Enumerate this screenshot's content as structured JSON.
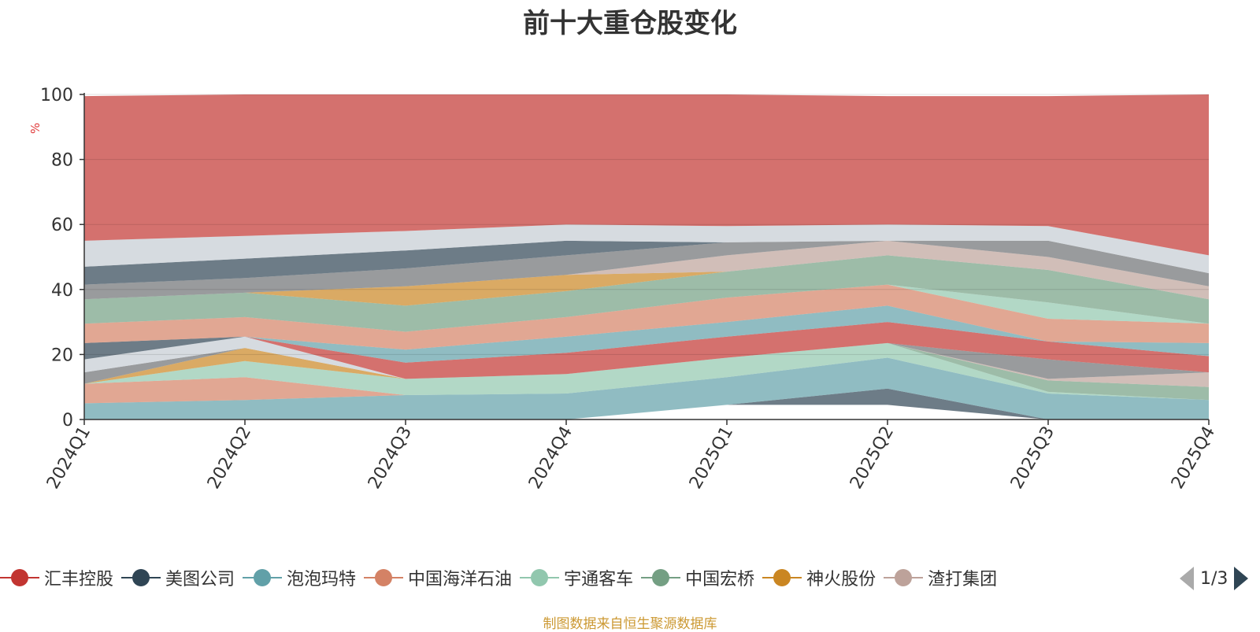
{
  "title": "前十大重仓股变化",
  "source": "制图数据来自恒生聚源数据库",
  "pager": {
    "text": "1/3"
  },
  "legend_items": [
    {
      "name": "汇丰控股",
      "color": "#c23531"
    },
    {
      "name": "美图公司",
      "color": "#2f4554"
    },
    {
      "name": "泡泡玛特",
      "color": "#61a0a8"
    },
    {
      "name": "中国海洋石油",
      "color": "#d48265"
    },
    {
      "name": "宇通客车",
      "color": "#91c7ae"
    },
    {
      "name": "中国宏桥",
      "color": "#749f83"
    },
    {
      "name": "神火股份",
      "color": "#ca8622"
    },
    {
      "name": "渣打集团",
      "color": "#bda29a"
    }
  ],
  "chart_data": {
    "type": "area",
    "stacked": true,
    "categories": [
      "2024Q1",
      "2024Q2",
      "2024Q3",
      "2024Q4",
      "2025Q1",
      "2025Q2",
      "2025Q3",
      "2025Q4"
    ],
    "ylabel": "%",
    "ylim": [
      0,
      100
    ],
    "yticks": [
      0,
      20,
      40,
      60,
      80,
      100
    ],
    "grid": true,
    "legend_position": "bottom",
    "bands": [
      {
        "color": "#c23531",
        "lower": [
          0,
          0,
          0,
          0,
          4.5,
          4.5,
          0,
          0
        ],
        "upper": [
          0,
          0,
          0,
          0,
          4.5,
          4.5,
          0,
          0
        ]
      },
      {
        "color": "#2f4554",
        "lower": [
          0,
          0,
          0,
          0,
          4.5,
          4.5,
          0,
          0
        ],
        "upper": [
          0,
          0,
          0,
          0,
          4.5,
          9.5,
          0,
          0
        ]
      },
      {
        "color": "#61a0a8",
        "lower": [
          0,
          0,
          0,
          0,
          4.5,
          9.5,
          0,
          0
        ],
        "upper": [
          5,
          6,
          7.5,
          8,
          13,
          19,
          8,
          6
        ]
      },
      {
        "color": "#d48265",
        "lower": [
          5,
          6,
          7.5,
          8,
          13,
          19,
          8,
          6
        ],
        "upper": [
          11,
          13,
          7.5,
          8,
          13,
          19,
          8,
          6
        ]
      },
      {
        "color": "#91c7ae",
        "lower": [
          11,
          13,
          7.5,
          8,
          13,
          19,
          8,
          6
        ],
        "upper": [
          11,
          18,
          12.5,
          14,
          19,
          23.5,
          8.5,
          6
        ]
      },
      {
        "color": "#749f83",
        "lower": [
          11,
          18,
          12.5,
          14,
          19,
          23.5,
          8.5,
          6
        ],
        "upper": [
          11,
          18,
          12.5,
          14,
          19,
          23.5,
          12,
          10
        ]
      },
      {
        "color": "#ca8622",
        "lower": [
          11,
          18,
          12.5,
          14,
          19,
          23.5,
          12,
          10
        ],
        "upper": [
          11,
          22,
          12.5,
          14,
          19,
          23.5,
          12,
          10
        ]
      },
      {
        "color": "#bda29a",
        "lower": [
          11,
          22,
          12.5,
          14,
          19,
          23.5,
          12,
          10
        ],
        "upper": [
          11,
          22,
          12.5,
          14,
          19,
          23.5,
          12.5,
          14.5
        ]
      },
      {
        "color": "#6e7074",
        "lower": [
          11,
          22,
          12.5,
          14,
          19,
          23.5,
          12.5,
          14.5
        ],
        "upper": [
          14.5,
          22,
          12.5,
          14,
          19,
          23.5,
          18.5,
          14.5
        ]
      },
      {
        "color": "#c4ccd3",
        "lower": [
          14.5,
          22,
          12.5,
          14,
          19,
          23.5,
          18.5,
          14.5
        ],
        "upper": [
          18.5,
          25.5,
          12.5,
          14,
          19,
          23.5,
          18.5,
          14.5
        ]
      },
      {
        "color": "#c23531",
        "lower": [
          18.5,
          25.5,
          12.5,
          14,
          19,
          23.5,
          18.5,
          14.5
        ],
        "upper": [
          18.5,
          25.5,
          17.5,
          20.5,
          25.5,
          30,
          24,
          19.5
        ]
      },
      {
        "color": "#2f4554",
        "lower": [
          18.5,
          25.5,
          17.5,
          20.5,
          25.5,
          30,
          24,
          19.5
        ],
        "upper": [
          23.5,
          25.5,
          17.5,
          20.5,
          25.5,
          30,
          24,
          19.5
        ]
      },
      {
        "color": "#61a0a8",
        "lower": [
          23.5,
          25.5,
          17.5,
          20.5,
          25.5,
          30,
          24,
          19.5
        ],
        "upper": [
          23.5,
          25.5,
          21.5,
          25.5,
          30,
          35,
          24,
          23.5
        ]
      },
      {
        "color": "#d48265",
        "lower": [
          23.5,
          25.5,
          21.5,
          25.5,
          30,
          35,
          24,
          23.5
        ],
        "upper": [
          29.5,
          31.5,
          27,
          31.5,
          37.5,
          41.5,
          31,
          29.5
        ]
      },
      {
        "color": "#91c7ae",
        "lower": [
          29.5,
          31.5,
          27,
          31.5,
          37.5,
          41.5,
          31,
          29.5
        ],
        "upper": [
          29.5,
          31.5,
          27,
          31.5,
          37.5,
          41.5,
          36,
          29.5
        ]
      },
      {
        "color": "#749f83",
        "lower": [
          29.5,
          31.5,
          27,
          31.5,
          37.5,
          41.5,
          36,
          29.5
        ],
        "upper": [
          37,
          39,
          35,
          39.5,
          45.5,
          50.5,
          46,
          37
        ]
      },
      {
        "color": "#ca8622",
        "lower": [
          37,
          39,
          35,
          39.5,
          45.5,
          50.5,
          46,
          37
        ],
        "upper": [
          37,
          39,
          41,
          44.5,
          45.5,
          50.5,
          46,
          37
        ]
      },
      {
        "color": "#bda29a",
        "lower": [
          37,
          39,
          41,
          44.5,
          45.5,
          50.5,
          46,
          37
        ],
        "upper": [
          37,
          39,
          41,
          44.5,
          50.5,
          55,
          50,
          41
        ]
      },
      {
        "color": "#6e7074",
        "lower": [
          37,
          39,
          41,
          44.5,
          50.5,
          55,
          50,
          41
        ],
        "upper": [
          41.5,
          43.5,
          46.5,
          50.5,
          54.5,
          55,
          55,
          45
        ]
      },
      {
        "color": "#2f4554",
        "lower": [
          41.5,
          43.5,
          46.5,
          50.5,
          54.5,
          55,
          55,
          45
        ],
        "upper": [
          47,
          49.5,
          52,
          55,
          54.5,
          55,
          55,
          45
        ]
      },
      {
        "color": "#c4ccd3",
        "lower": [
          47,
          49.5,
          52,
          55,
          54.5,
          55,
          55,
          45
        ],
        "upper": [
          55,
          56.5,
          58,
          60,
          59.5,
          60,
          59.5,
          50.5
        ]
      },
      {
        "color": "#c23531",
        "lower": [
          55,
          56.5,
          58,
          60,
          59.5,
          60,
          59.5,
          50.5
        ],
        "upper": [
          99.5,
          100,
          100,
          100,
          100,
          99.5,
          99.5,
          100
        ]
      }
    ]
  }
}
